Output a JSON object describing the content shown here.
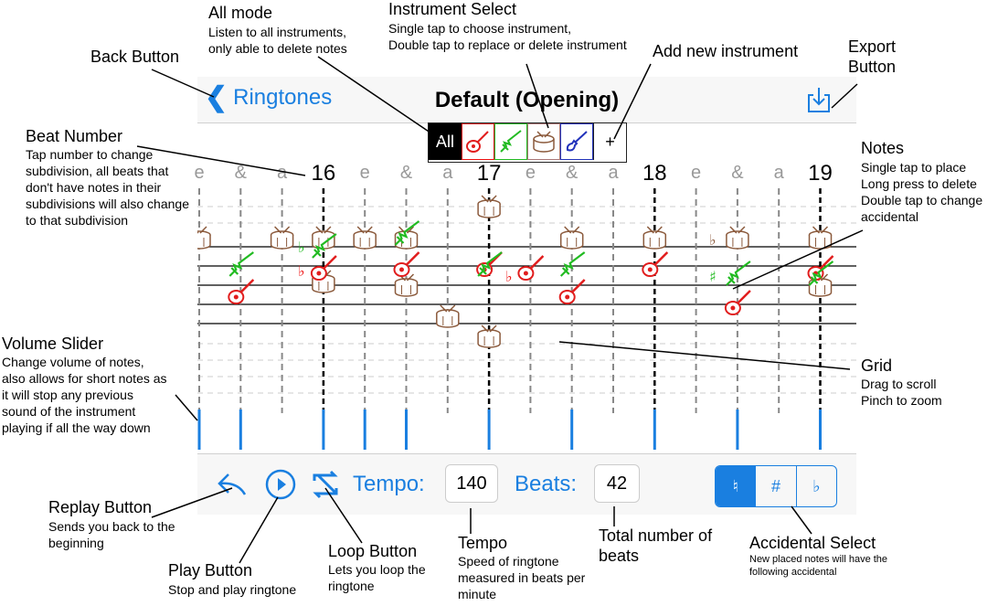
{
  "nav": {
    "back_label": "Ringtones",
    "title": "Default (Opening)",
    "export_icon": "export-icon"
  },
  "instruments": [
    {
      "label": "All",
      "icon": "",
      "selected": true
    },
    {
      "label": "",
      "icon": "guitar-icon",
      "color": "#e11d1d"
    },
    {
      "label": "",
      "icon": "bass-guitar-icon",
      "color": "#22bb22"
    },
    {
      "label": "",
      "icon": "drum-icon",
      "color": "#8b5a3c"
    },
    {
      "label": "",
      "icon": "electric-guitar-icon",
      "color": "#2233bb"
    },
    {
      "label": "+",
      "icon": "add-icon"
    }
  ],
  "grid": {
    "beat_labels": [
      "e",
      "&",
      "a",
      "16",
      "e",
      "&",
      "a",
      "17",
      "e",
      "&",
      "a",
      "18",
      "e",
      "&",
      "a",
      "19"
    ],
    "major_beats": [
      "16",
      "17",
      "18",
      "19"
    ],
    "accidentals_shown": [
      "♭",
      "♭",
      "♭",
      "♯",
      "♭"
    ]
  },
  "toolbar": {
    "tempo_label": "Tempo:",
    "tempo_value": "140",
    "beats_label": "Beats:",
    "beats_value": "42",
    "accidentals": [
      "♮",
      "#",
      "♭"
    ],
    "selected_accidental": "♮"
  },
  "annotations": {
    "all_mode": {
      "title": "All mode",
      "desc": "Listen to all instruments,\nonly able to delete notes"
    },
    "instrument_select": {
      "title": "Instrument Select",
      "desc": "Single tap to choose instrument,\nDouble tap to replace or delete instrument"
    },
    "add_instrument": {
      "title": "Add new instrument"
    },
    "export": {
      "title": "Export\nButton"
    },
    "back": {
      "title": "Back Button"
    },
    "beat_number": {
      "title": "Beat Number",
      "desc": "Tap number to change\nsubdivision, all beats that\ndon't have notes in their\nsubdivisions will also change\nto that subdivision"
    },
    "notes": {
      "title": "Notes",
      "desc": "Single tap to place\nLong press to delete\nDouble tap to change\naccidental"
    },
    "volume": {
      "title": "Volume Slider",
      "desc": "Change volume of notes,\nalso allows for short notes as\nit will stop any previous\nsound of the instrument\nplaying  if all the way down"
    },
    "grid": {
      "title": "Grid",
      "desc": "Drag to scroll\nPinch to zoom"
    },
    "replay": {
      "title": "Replay Button",
      "desc": "Sends you back to the\nbeginning"
    },
    "play": {
      "title": "Play Button",
      "desc": "Stop and play ringtone"
    },
    "loop": {
      "title": "Loop Button",
      "desc": "Lets you loop the\nringtone"
    },
    "tempo": {
      "title": "Tempo",
      "desc": "Speed of ringtone\nmeasured in beats per\nminute"
    },
    "total_beats": {
      "title": "Total number of\nbeats"
    },
    "accidental_select": {
      "title": "Accidental Select",
      "desc": "New placed notes will have the\nfollowing accidental"
    }
  }
}
